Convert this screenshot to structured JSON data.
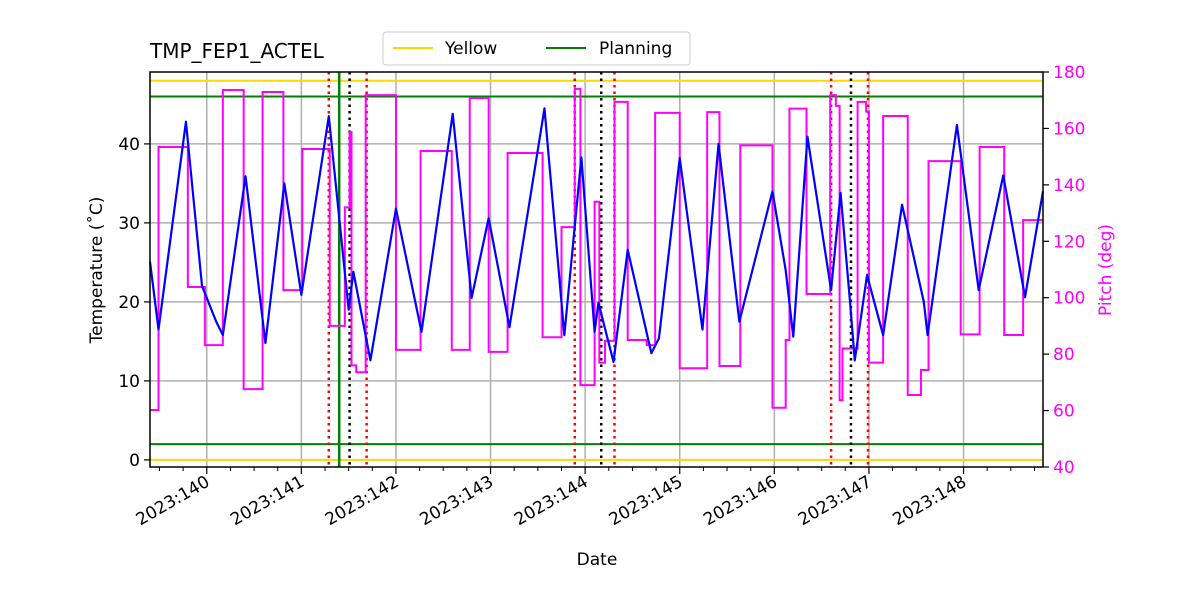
{
  "chart_data": {
    "type": "line",
    "title": "TMP_FEP1_ACTEL",
    "xlabel": "Date",
    "ylabel": "Temperature ($^\\circ$C)",
    "ylabel_display": "Temperature (˚C)",
    "y2label": "Pitch (deg)",
    "xlim": [
      139.4,
      148.84
    ],
    "ylim": [
      -0.9,
      49.1
    ],
    "y2lim": [
      40,
      180
    ],
    "x_ticks": [
      140,
      141,
      142,
      143,
      144,
      145,
      146,
      147,
      148
    ],
    "x_tick_labels": [
      "2023:140",
      "2023:141",
      "2023:142",
      "2023:143",
      "2023:144",
      "2023:145",
      "2023:146",
      "2023:147",
      "2023:148"
    ],
    "y_ticks": [
      0,
      10,
      20,
      30,
      40
    ],
    "y2_ticks": [
      40,
      60,
      80,
      100,
      120,
      140,
      160,
      180
    ],
    "grid": true,
    "legend_placement": "top-center",
    "legend": [
      {
        "label": "Yellow",
        "color": "#ffd700"
      },
      {
        "label": "Planning",
        "color": "#008000"
      }
    ],
    "limit_lines": [
      {
        "name": "Yellow",
        "values": [
          48,
          0
        ],
        "color": "#ffd700"
      },
      {
        "name": "Planning",
        "values": [
          46,
          2
        ],
        "color": "#008000"
      }
    ],
    "vertical_lines": {
      "red_dotted": [
        141.29,
        141.69,
        143.89,
        144.31,
        146.6,
        146.99
      ],
      "black_dotted": [
        141.51,
        144.17,
        146.81
      ],
      "green_solid": [
        141.4
      ]
    },
    "temperature": {
      "color": "#0000ff",
      "points": [
        [
          139.4,
          25.1
        ],
        [
          139.49,
          16.5
        ],
        [
          139.78,
          42.8
        ],
        [
          139.95,
          22
        ],
        [
          140.1,
          17.5
        ],
        [
          140.17,
          15.8
        ],
        [
          140.41,
          35.9
        ],
        [
          140.62,
          14.8
        ],
        [
          140.82,
          35
        ],
        [
          141.0,
          20.9
        ],
        [
          141.29,
          43.5
        ],
        [
          141.5,
          19
        ],
        [
          141.55,
          23.8
        ],
        [
          141.73,
          12.6
        ],
        [
          142.0,
          31.8
        ],
        [
          142.27,
          16.2
        ],
        [
          142.6,
          43.8
        ],
        [
          142.8,
          20.5
        ],
        [
          142.98,
          30.6
        ],
        [
          143.2,
          16.8
        ],
        [
          143.57,
          44.5
        ],
        [
          143.78,
          15.8
        ],
        [
          143.96,
          38.3
        ],
        [
          144.1,
          16.2
        ],
        [
          144.14,
          19.9
        ],
        [
          144.3,
          12.4
        ],
        [
          144.45,
          26.6
        ],
        [
          144.7,
          13.5
        ],
        [
          144.78,
          15.4
        ],
        [
          145.0,
          38.2
        ],
        [
          145.24,
          16.5
        ],
        [
          145.41,
          40
        ],
        [
          145.63,
          17.5
        ],
        [
          145.98,
          34
        ],
        [
          146.12,
          24
        ],
        [
          146.2,
          15.6
        ],
        [
          146.35,
          40.9
        ],
        [
          146.6,
          21.5
        ],
        [
          146.7,
          33.8
        ],
        [
          146.8,
          20
        ],
        [
          146.85,
          12.6
        ],
        [
          146.98,
          23.4
        ],
        [
          147.15,
          15.8
        ],
        [
          147.35,
          32.3
        ],
        [
          147.58,
          20
        ],
        [
          147.62,
          15.8
        ],
        [
          147.93,
          42.4
        ],
        [
          148.16,
          21.5
        ],
        [
          148.42,
          36
        ],
        [
          148.65,
          20.6
        ],
        [
          148.84,
          34
        ]
      ]
    },
    "pitch": {
      "color": "#ff00ff",
      "steps": [
        [
          139.4,
          60.2
        ],
        [
          139.49,
          153.4
        ],
        [
          139.8,
          103.8
        ],
        [
          139.98,
          83.2
        ],
        [
          140.17,
          173.6
        ],
        [
          140.39,
          67.6
        ],
        [
          140.59,
          172.9
        ],
        [
          140.81,
          102.7
        ],
        [
          141.01,
          152.7
        ],
        [
          141.3,
          90
        ],
        [
          141.46,
          132
        ],
        [
          141.51,
          158.7
        ],
        [
          141.53,
          76
        ],
        [
          141.58,
          73.6
        ],
        [
          141.68,
          171.8
        ],
        [
          142.0,
          81.5
        ],
        [
          142.26,
          152
        ],
        [
          142.59,
          81.5
        ],
        [
          142.78,
          170.8
        ],
        [
          142.98,
          80.8
        ],
        [
          143.18,
          151.3
        ],
        [
          143.55,
          86
        ],
        [
          143.75,
          125
        ],
        [
          143.89,
          174
        ],
        [
          143.95,
          69
        ],
        [
          144.1,
          134
        ],
        [
          144.15,
          77
        ],
        [
          144.21,
          84.7
        ],
        [
          144.31,
          169.4
        ],
        [
          144.45,
          85
        ],
        [
          144.65,
          83.2
        ],
        [
          144.74,
          165.5
        ],
        [
          145.0,
          75
        ],
        [
          145.29,
          165.8
        ],
        [
          145.42,
          75.8
        ],
        [
          145.64,
          154
        ],
        [
          145.98,
          61
        ],
        [
          146.12,
          85
        ],
        [
          146.16,
          167
        ],
        [
          146.34,
          101.3
        ],
        [
          146.59,
          171.8
        ],
        [
          146.65,
          168
        ],
        [
          146.69,
          63.7
        ],
        [
          146.72,
          82
        ],
        [
          146.88,
          169.4
        ],
        [
          146.97,
          166
        ],
        [
          147.0,
          77
        ],
        [
          147.15,
          164.4
        ],
        [
          147.41,
          65.5
        ],
        [
          147.55,
          74.4
        ],
        [
          147.63,
          148.4
        ],
        [
          147.97,
          87
        ],
        [
          148.17,
          153.4
        ],
        [
          148.43,
          86.8
        ],
        [
          148.63,
          127.5
        ],
        [
          148.84,
          127.5
        ]
      ]
    }
  }
}
